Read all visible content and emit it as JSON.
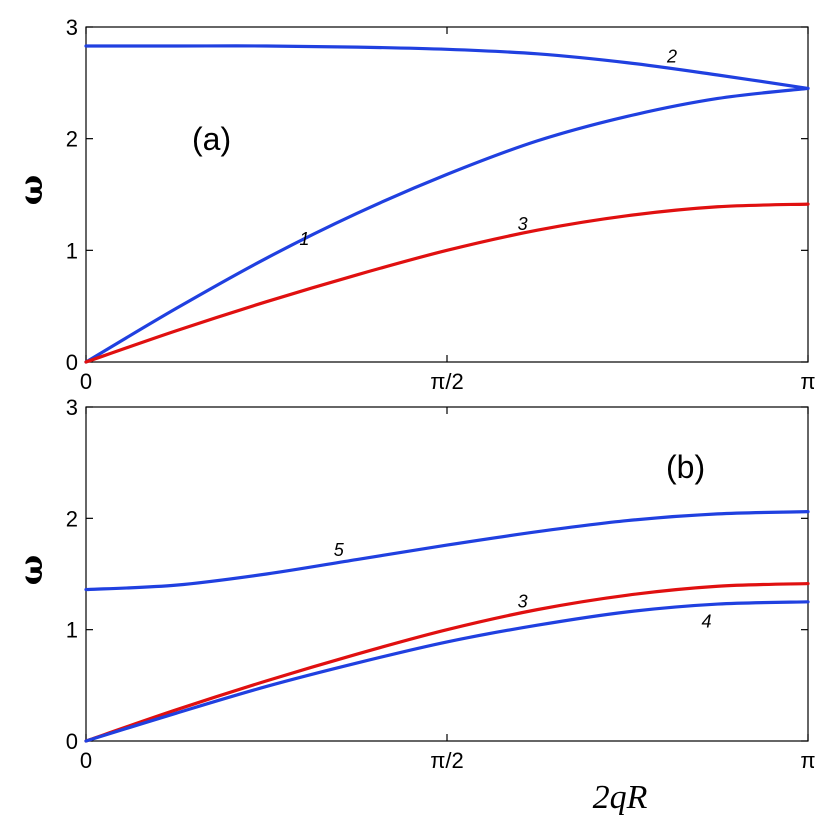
{
  "chart_data": [
    {
      "panel_label": "(a)",
      "type": "line",
      "xlabel": "",
      "ylabel": "ω",
      "xlim": [
        0,
        3.14159
      ],
      "ylim": [
        0,
        3
      ],
      "xticks": [
        {
          "value": 0,
          "label": "0"
        },
        {
          "value": 1.5708,
          "label": "π/2"
        },
        {
          "value": 3.14159,
          "label": "π"
        }
      ],
      "yticks": [
        {
          "value": 0,
          "label": "0"
        },
        {
          "value": 1,
          "label": "1"
        },
        {
          "value": 2,
          "label": "2"
        },
        {
          "value": 3,
          "label": "3"
        }
      ],
      "series": [
        {
          "name": "1",
          "color": "#2040e0",
          "label_at": [
            0.95,
            1.05
          ],
          "x": [
            0,
            0.3927,
            0.7854,
            1.1781,
            1.5708,
            1.9635,
            2.3562,
            2.7489,
            3.14159
          ],
          "y": [
            0,
            0.48,
            0.93,
            1.33,
            1.68,
            1.98,
            2.2,
            2.36,
            2.45
          ]
        },
        {
          "name": "2",
          "color": "#2040e0",
          "label_at": [
            2.55,
            2.68
          ],
          "x": [
            0,
            0.3927,
            0.7854,
            1.1781,
            1.5708,
            1.9635,
            2.3562,
            2.7489,
            3.14159
          ],
          "y": [
            2.83,
            2.83,
            2.83,
            2.82,
            2.8,
            2.76,
            2.68,
            2.57,
            2.45
          ]
        },
        {
          "name": "3",
          "color": "#e01010",
          "label_at": [
            1.9,
            1.18
          ],
          "x": [
            0,
            0.3927,
            0.7854,
            1.1781,
            1.5708,
            1.9635,
            2.3562,
            2.7489,
            3.14159
          ],
          "y": [
            0,
            0.28,
            0.54,
            0.78,
            1.0,
            1.18,
            1.31,
            1.39,
            1.414
          ]
        }
      ]
    },
    {
      "panel_label": "(b)",
      "type": "line",
      "xlabel": "2qR",
      "ylabel": "ω",
      "xlim": [
        0,
        3.14159
      ],
      "ylim": [
        0,
        3
      ],
      "xticks": [
        {
          "value": 0,
          "label": "0"
        },
        {
          "value": 1.5708,
          "label": "π/2"
        },
        {
          "value": 3.14159,
          "label": "π"
        }
      ],
      "yticks": [
        {
          "value": 0,
          "label": "0"
        },
        {
          "value": 1,
          "label": "1"
        },
        {
          "value": 2,
          "label": "2"
        },
        {
          "value": 3,
          "label": "3"
        }
      ],
      "series": [
        {
          "name": "5",
          "color": "#2040e0",
          "label_at": [
            1.1,
            1.66
          ],
          "x": [
            0,
            0.3927,
            0.7854,
            1.1781,
            1.5708,
            1.9635,
            2.3562,
            2.7489,
            3.14159
          ],
          "y": [
            1.36,
            1.4,
            1.5,
            1.63,
            1.76,
            1.88,
            1.98,
            2.04,
            2.06
          ]
        },
        {
          "name": "3",
          "color": "#e01010",
          "label_at": [
            1.9,
            1.2
          ],
          "x": [
            0,
            0.3927,
            0.7854,
            1.1781,
            1.5708,
            1.9635,
            2.3562,
            2.7489,
            3.14159
          ],
          "y": [
            0,
            0.28,
            0.54,
            0.78,
            1.0,
            1.18,
            1.31,
            1.39,
            1.414
          ]
        },
        {
          "name": "4",
          "color": "#2040e0",
          "label_at": [
            2.7,
            1.02
          ],
          "x": [
            0,
            0.3927,
            0.7854,
            1.1781,
            1.5708,
            1.9635,
            2.3562,
            2.7489,
            3.14159
          ],
          "y": [
            0,
            0.25,
            0.49,
            0.7,
            0.89,
            1.04,
            1.16,
            1.23,
            1.25
          ]
        }
      ]
    }
  ]
}
